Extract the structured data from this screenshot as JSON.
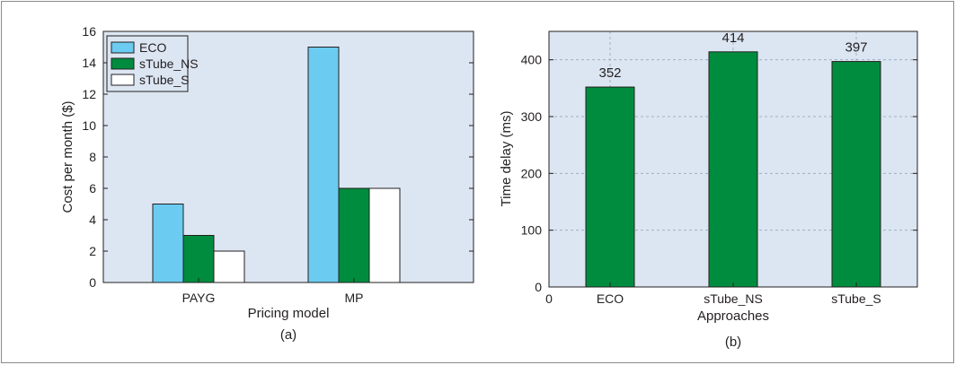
{
  "colors": {
    "plot_bg": "#dce6f2",
    "eco": "#6ccbf0",
    "stube_ns": "#008c3e",
    "stube_s": "#ffffff",
    "grid": "#9fb0c4",
    "edge": "#231f20"
  },
  "chart_data": [
    {
      "type": "bar",
      "categories": [
        "PAYG",
        "MP"
      ],
      "series": [
        {
          "name": "ECO",
          "values": [
            5,
            15
          ]
        },
        {
          "name": "sTube_NS",
          "values": [
            3,
            6
          ]
        },
        {
          "name": "sTube_S",
          "values": [
            2,
            6
          ]
        }
      ],
      "xlabel": "Pricing model",
      "ylabel": "Cost per month ($)",
      "ylim": [
        0,
        16
      ],
      "yticks": [
        "0",
        "2",
        "4",
        "6",
        "8",
        "10",
        "12",
        "14",
        "16"
      ],
      "caption": "(a)",
      "legend": "top-left",
      "grid": false
    },
    {
      "type": "bar",
      "categories": [
        "ECO",
        "sTube_NS",
        "sTube_S"
      ],
      "values": [
        352,
        414,
        397
      ],
      "data_labels": [
        "352",
        "414",
        "397"
      ],
      "xlabel": "Approaches",
      "ylabel": "Time delay (ms)",
      "ylim": [
        0,
        450
      ],
      "yticks": [
        "0",
        "100",
        "200",
        "300",
        "400"
      ],
      "xorigin_label": "0",
      "caption": "(b)",
      "grid": true
    }
  ]
}
